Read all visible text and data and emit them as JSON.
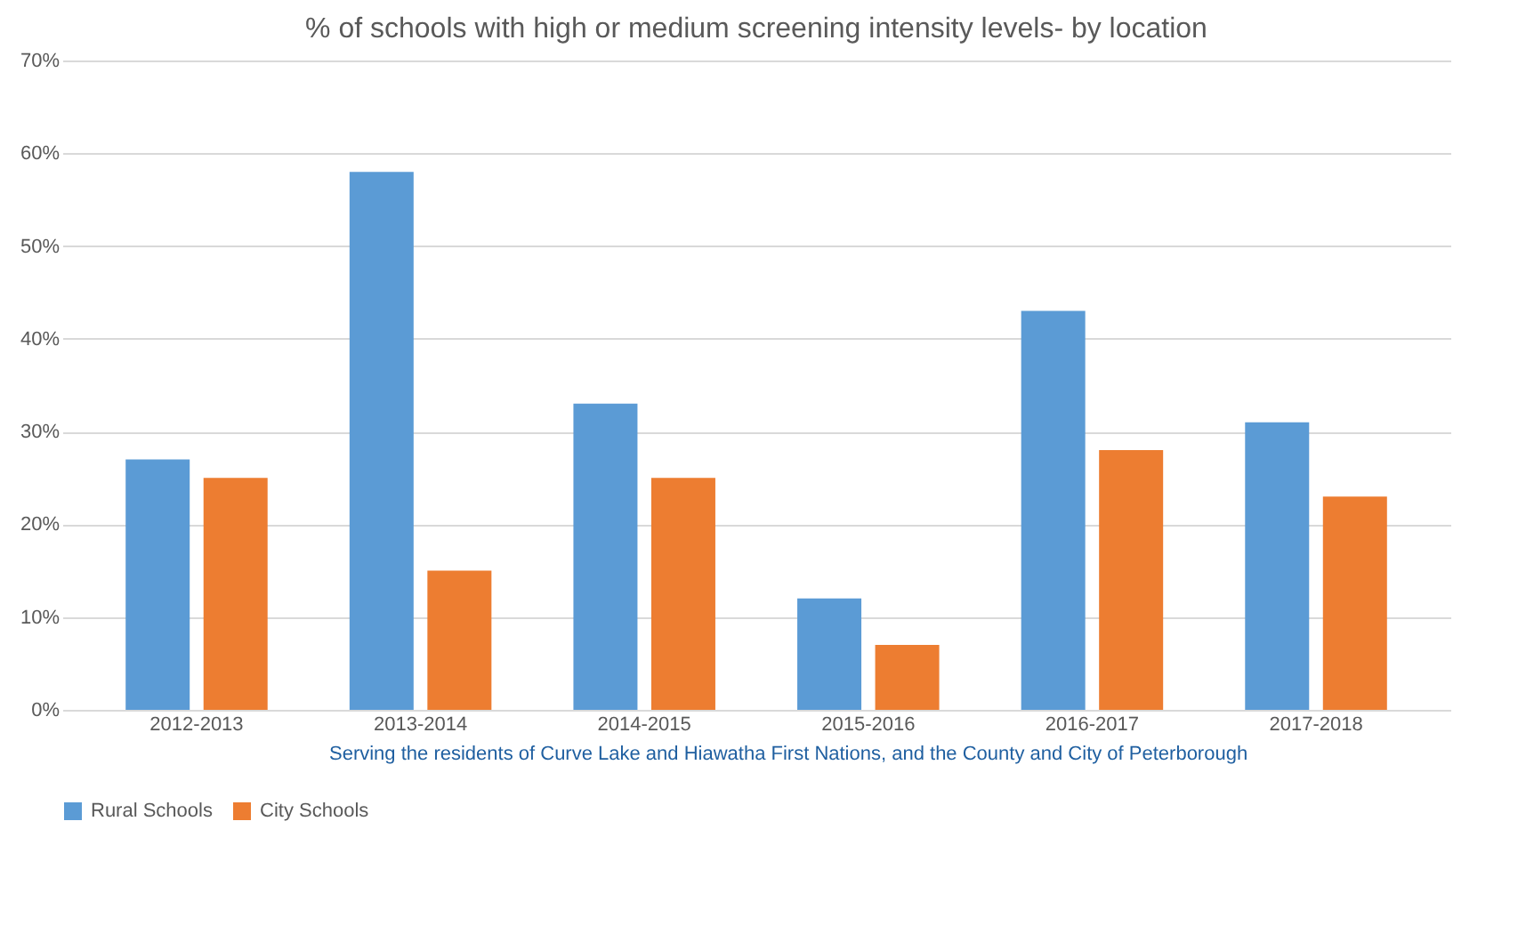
{
  "chart_data": {
    "type": "bar",
    "title": "% of schools with high or medium screening intensity levels- by location",
    "categories": [
      "2012-2013",
      "2013-2014",
      "2014-2015",
      "2015-2016",
      "2016-2017",
      "2017-2018"
    ],
    "series": [
      {
        "name": "Rural Schools",
        "color": "#5b9bd5",
        "values": [
          27,
          58,
          33,
          12,
          43,
          31
        ]
      },
      {
        "name": "City Schools",
        "color": "#ed7d31",
        "values": [
          25,
          15,
          25,
          7,
          28,
          23
        ]
      }
    ],
    "ylim": [
      0,
      70
    ],
    "yticks": [
      {
        "value": 0,
        "label": "0%"
      },
      {
        "value": 10,
        "label": "10%"
      },
      {
        "value": 20,
        "label": "20%"
      },
      {
        "value": 30,
        "label": "30%"
      },
      {
        "value": 40,
        "label": "40%"
      },
      {
        "value": 50,
        "label": "50%"
      },
      {
        "value": 60,
        "label": "60%"
      },
      {
        "value": 70,
        "label": "70%"
      }
    ],
    "grid": "y",
    "legend": "bottom",
    "annotations": [
      "Serving the residents of Curve Lake and Hiawatha First Nations, and the County and City of Peterborough"
    ]
  }
}
